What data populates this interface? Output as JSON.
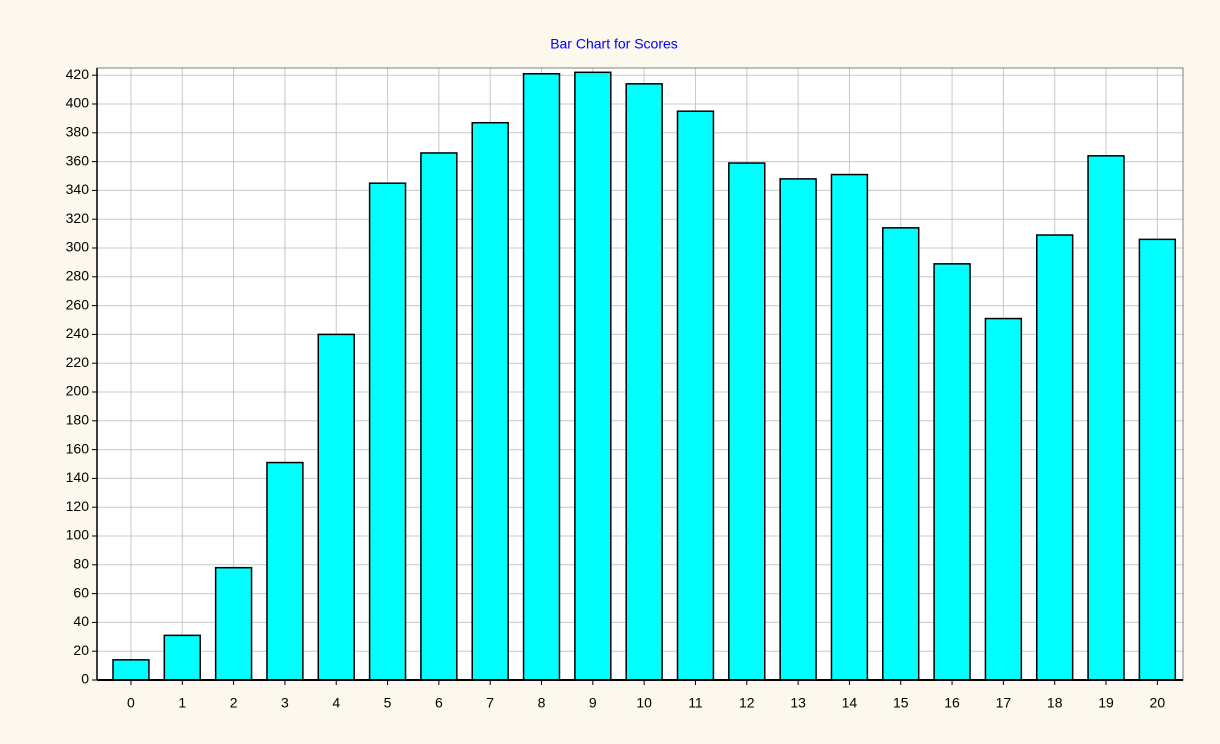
{
  "chart_data": {
    "type": "bar",
    "title": "Bar Chart for Scores",
    "categories": [
      "0",
      "1",
      "2",
      "3",
      "4",
      "5",
      "6",
      "7",
      "8",
      "9",
      "10",
      "11",
      "12",
      "13",
      "14",
      "15",
      "16",
      "17",
      "18",
      "19",
      "20"
    ],
    "values": [
      14,
      31,
      78,
      151,
      240,
      345,
      366,
      387,
      421,
      422,
      414,
      395,
      359,
      348,
      351,
      314,
      289,
      251,
      309,
      364,
      306
    ],
    "color": "#00ffff",
    "ylim": [
      0,
      425
    ],
    "yticks": [
      0,
      20,
      40,
      60,
      80,
      100,
      120,
      140,
      160,
      180,
      200,
      220,
      240,
      260,
      280,
      300,
      320,
      340,
      360,
      380,
      400,
      420
    ],
    "grid": true
  }
}
